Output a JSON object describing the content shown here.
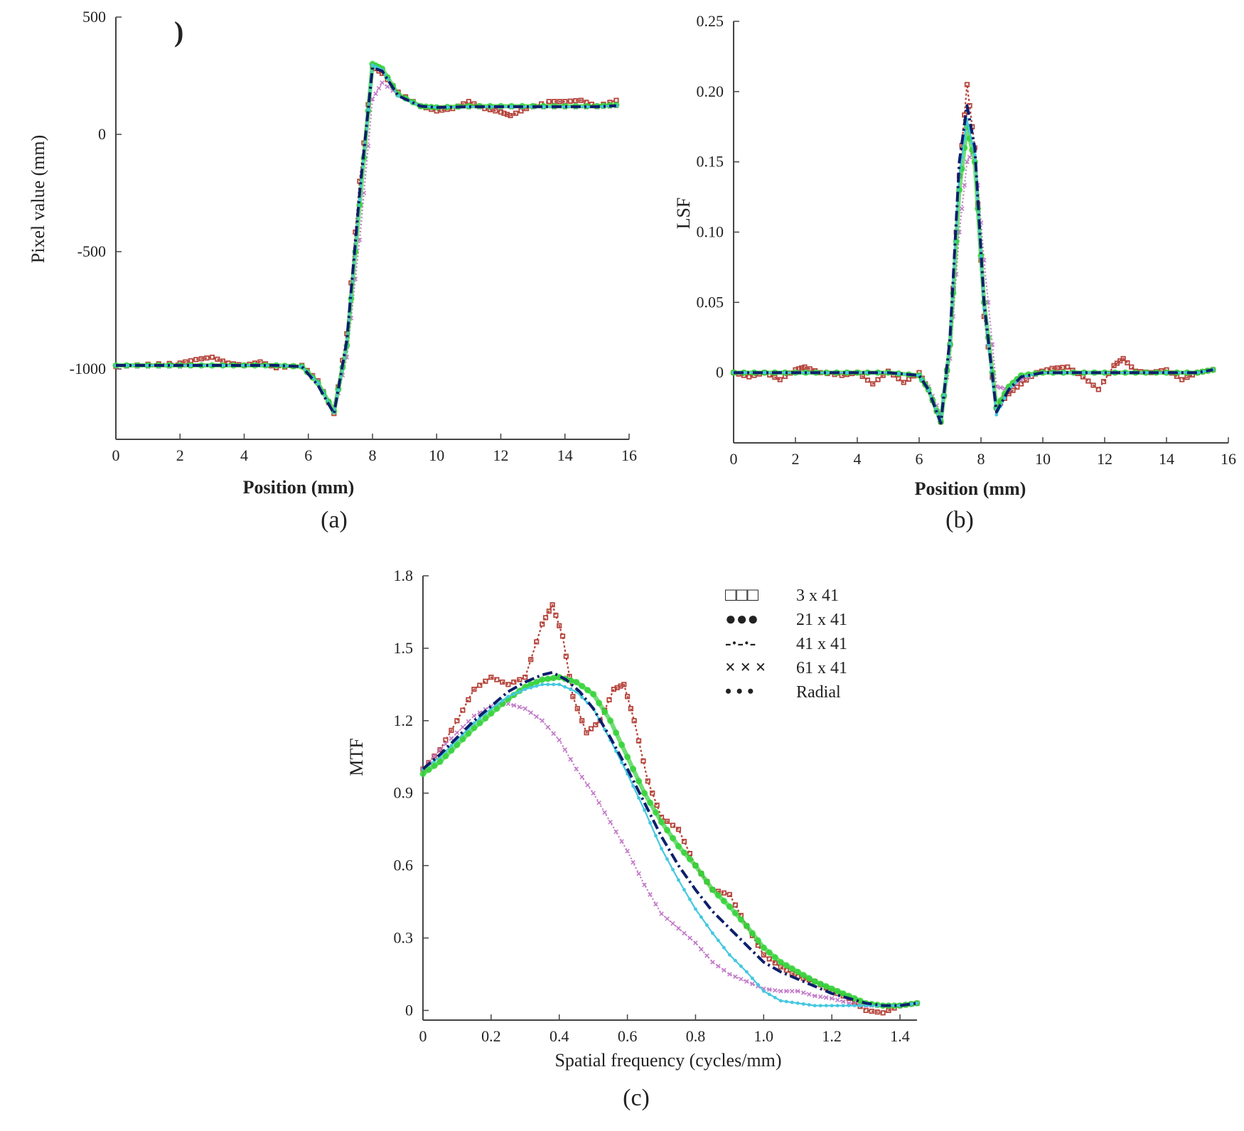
{
  "chart_data": [
    {
      "id": "a",
      "type": "line",
      "panel_label": "(a)",
      "corner_mark": ")",
      "xlabel": "Position (mm)",
      "ylabel": "Pixel value (mm)",
      "xlim": [
        0,
        16
      ],
      "ylim": [
        -1300,
        500
      ],
      "x_ticks": [
        0,
        2,
        4,
        6,
        8,
        10,
        12,
        14,
        16
      ],
      "x_tick_labels": [
        "0",
        "2",
        "4",
        "6",
        "8",
        "10",
        "12",
        "14",
        "16"
      ],
      "y_ticks": [
        500,
        0,
        -500,
        -1000
      ],
      "y_tick_labels": [
        "500",
        "0",
        "-500",
        "-1000"
      ],
      "series": [
        {
          "key": "s3",
          "x": [
            0,
            1,
            2,
            2.5,
            3,
            3.5,
            4,
            4.5,
            5,
            5.8,
            6.3,
            6.8,
            7.2,
            7.6,
            8.0,
            8.3,
            8.8,
            9.5,
            10,
            10.5,
            11,
            11.5,
            12,
            12.3,
            12.8,
            13.5,
            14,
            14.5,
            15,
            15.6
          ],
          "y": [
            -990,
            -980,
            -975,
            -960,
            -950,
            -975,
            -985,
            -970,
            -995,
            -985,
            -1050,
            -1190,
            -850,
            -200,
            290,
            260,
            180,
            120,
            100,
            110,
            140,
            110,
            95,
            80,
            110,
            140,
            140,
            145,
            120,
            145
          ]
        },
        {
          "key": "s21",
          "x": [
            0,
            1,
            2,
            3,
            4,
            5,
            5.8,
            6.3,
            6.8,
            7.2,
            7.6,
            8.0,
            8.3,
            8.8,
            9.5,
            10,
            11,
            12,
            13,
            14,
            15,
            15.6
          ],
          "y": [
            -985,
            -985,
            -985,
            -985,
            -985,
            -985,
            -990,
            -1060,
            -1180,
            -900,
            -300,
            300,
            280,
            170,
            120,
            115,
            120,
            120,
            120,
            120,
            120,
            125
          ]
        },
        {
          "key": "s41",
          "x": [
            0,
            1,
            2,
            3,
            4,
            5,
            5.8,
            6.3,
            6.8,
            7.2,
            7.6,
            8.0,
            8.3,
            8.8,
            9.5,
            10,
            11,
            12,
            13,
            14,
            15,
            15.6
          ],
          "y": [
            -985,
            -985,
            -985,
            -985,
            -985,
            -985,
            -990,
            -1070,
            -1190,
            -880,
            -250,
            285,
            270,
            165,
            120,
            115,
            118,
            118,
            118,
            118,
            118,
            122
          ]
        },
        {
          "key": "s61",
          "x": [
            0,
            1,
            2,
            3,
            4,
            5,
            5.8,
            6.3,
            6.8,
            7.2,
            7.6,
            8.0,
            8.3,
            8.8,
            9.5,
            10,
            11,
            12,
            13,
            14,
            15,
            15.6
          ],
          "y": [
            -990,
            -990,
            -990,
            -985,
            -985,
            -985,
            -990,
            -1050,
            -1180,
            -950,
            -450,
            150,
            220,
            170,
            120,
            115,
            115,
            115,
            115,
            115,
            115,
            120
          ]
        },
        {
          "key": "radial",
          "x": [
            0,
            1,
            2,
            3,
            4,
            5,
            5.8,
            6.3,
            6.8,
            7.2,
            7.6,
            8.0,
            8.3,
            8.8,
            9.5,
            10,
            11,
            12,
            13,
            14,
            15,
            15.6
          ],
          "y": [
            -985,
            -985,
            -985,
            -985,
            -985,
            -985,
            -990,
            -1060,
            -1185,
            -900,
            -280,
            295,
            275,
            165,
            120,
            115,
            118,
            118,
            118,
            118,
            118,
            122
          ]
        }
      ]
    },
    {
      "id": "b",
      "type": "line",
      "panel_label": "(b)",
      "xlabel": "Position (mm)",
      "ylabel": "LSF",
      "xlim": [
        0,
        16
      ],
      "ylim": [
        -0.05,
        0.25
      ],
      "x_ticks": [
        0,
        2,
        4,
        6,
        8,
        10,
        12,
        14,
        16
      ],
      "x_tick_labels": [
        "0",
        "2",
        "4",
        "6",
        "8",
        "10",
        "12",
        "14",
        "16"
      ],
      "y_ticks": [
        0.25,
        0.2,
        0.15,
        0.1,
        0.05,
        0
      ],
      "y_tick_labels": [
        "0.25",
        "0.20",
        "0.15",
        "0.10",
        "0.05",
        "0"
      ],
      "series": [
        {
          "key": "s3",
          "x": [
            0,
            0.5,
            1,
            1.5,
            2,
            2.3,
            2.8,
            3.5,
            4,
            4.5,
            5,
            5.5,
            6,
            6.3,
            6.7,
            7.0,
            7.3,
            7.55,
            7.8,
            8.1,
            8.5,
            8.9,
            9.3,
            9.8,
            10.3,
            10.8,
            11.3,
            11.8,
            12.3,
            12.6,
            13,
            13.5,
            14,
            14.5,
            15,
            15.5
          ],
          "y": [
            0,
            -0.003,
            0,
            -0.005,
            0.002,
            0.004,
            0,
            -0.002,
            0,
            -0.008,
            0.001,
            -0.007,
            0,
            -0.012,
            -0.035,
            0.02,
            0.14,
            0.205,
            0.16,
            0.04,
            -0.025,
            -0.015,
            -0.008,
            0,
            0.003,
            0.004,
            -0.003,
            -0.012,
            0.005,
            0.01,
            0.001,
            0,
            0.002,
            -0.005,
            0,
            0.002
          ]
        },
        {
          "key": "s21",
          "x": [
            0,
            1,
            2,
            3,
            4,
            5,
            6,
            6.3,
            6.7,
            7.0,
            7.3,
            7.55,
            7.8,
            8.1,
            8.5,
            8.9,
            9.3,
            10,
            11,
            12,
            13,
            14,
            15,
            15.5
          ],
          "y": [
            0,
            0,
            0,
            0,
            0,
            0,
            -0.002,
            -0.012,
            -0.035,
            0.02,
            0.13,
            0.175,
            0.15,
            0.05,
            -0.025,
            -0.01,
            -0.002,
            0,
            0,
            0,
            0,
            0,
            0,
            0.002
          ]
        },
        {
          "key": "s41",
          "x": [
            0,
            1,
            2,
            3,
            4,
            5,
            6,
            6.3,
            6.7,
            7.0,
            7.3,
            7.55,
            7.8,
            8.1,
            8.5,
            8.9,
            9.3,
            10,
            11,
            12,
            13,
            14,
            15,
            15.5
          ],
          "y": [
            0,
            0,
            0,
            0,
            0,
            0,
            -0.002,
            -0.012,
            -0.036,
            0.025,
            0.15,
            0.19,
            0.16,
            0.05,
            -0.028,
            -0.012,
            -0.003,
            0,
            0,
            0,
            0,
            0,
            0,
            0.002
          ]
        },
        {
          "key": "s61",
          "x": [
            0,
            1,
            2,
            3,
            4,
            5,
            6,
            6.3,
            6.7,
            7.0,
            7.3,
            7.55,
            7.8,
            8.1,
            8.5,
            8.9,
            9.3,
            10,
            11,
            12,
            13,
            14,
            15,
            15.5
          ],
          "y": [
            0,
            0,
            0,
            0,
            0,
            0,
            -0.002,
            -0.01,
            -0.03,
            0.01,
            0.1,
            0.15,
            0.16,
            0.08,
            -0.01,
            -0.012,
            -0.005,
            0,
            0,
            0,
            0,
            0,
            0,
            0.002
          ]
        },
        {
          "key": "radial",
          "x": [
            0,
            1,
            2,
            3,
            4,
            5,
            6,
            6.3,
            6.7,
            7.0,
            7.3,
            7.55,
            7.8,
            8.1,
            8.5,
            8.9,
            9.3,
            10,
            11,
            12,
            13,
            14,
            15,
            15.5
          ],
          "y": [
            0,
            0,
            0,
            0,
            0,
            0,
            -0.002,
            -0.012,
            -0.035,
            0.02,
            0.14,
            0.18,
            0.155,
            0.045,
            -0.03,
            -0.012,
            -0.003,
            0,
            0,
            0,
            0,
            0,
            0,
            0.002
          ]
        }
      ]
    },
    {
      "id": "c",
      "type": "line",
      "panel_label": "(c)",
      "xlabel": "Spatial frequency (cycles/mm)",
      "ylabel": "MTF",
      "xlim": [
        0,
        1.45
      ],
      "ylim": [
        -0.04,
        1.8
      ],
      "x_ticks": [
        0,
        0.2,
        0.4,
        0.6,
        0.8,
        1.0,
        1.2,
        1.4
      ],
      "x_tick_labels": [
        "0",
        "0.2",
        "0.4",
        "0.6",
        "0.8",
        "1.0",
        "1.2",
        "1.4"
      ],
      "y_ticks": [
        1.8,
        1.5,
        1.2,
        0.9,
        0.6,
        0.3,
        0
      ],
      "y_tick_labels": [
        "1.8",
        "1.5",
        "1.2",
        "0.9",
        "0.6",
        "0.3",
        "0"
      ],
      "legend": {
        "position": "top-right"
      },
      "series": [
        {
          "key": "s3",
          "name": "3   x 41",
          "x": [
            0,
            0.05,
            0.1,
            0.15,
            0.2,
            0.25,
            0.3,
            0.35,
            0.38,
            0.41,
            0.44,
            0.48,
            0.52,
            0.56,
            0.59,
            0.62,
            0.66,
            0.7,
            0.75,
            0.8,
            0.85,
            0.9,
            0.95,
            1.0,
            1.05,
            1.1,
            1.15,
            1.2,
            1.25,
            1.3,
            1.35,
            1.4,
            1.45
          ],
          "y": [
            1.0,
            1.08,
            1.2,
            1.33,
            1.38,
            1.35,
            1.38,
            1.6,
            1.68,
            1.55,
            1.3,
            1.15,
            1.2,
            1.33,
            1.35,
            1.2,
            0.95,
            0.8,
            0.75,
            0.6,
            0.5,
            0.48,
            0.35,
            0.23,
            0.18,
            0.14,
            0.12,
            0.08,
            0.05,
            0.0,
            -0.01,
            0.02,
            0.03
          ]
        },
        {
          "key": "s21",
          "name": "21 x 41",
          "x": [
            0,
            0.05,
            0.1,
            0.15,
            0.2,
            0.25,
            0.3,
            0.35,
            0.4,
            0.45,
            0.5,
            0.55,
            0.6,
            0.65,
            0.7,
            0.75,
            0.8,
            0.85,
            0.9,
            0.95,
            1.0,
            1.05,
            1.1,
            1.15,
            1.2,
            1.25,
            1.3,
            1.35,
            1.4,
            1.45
          ],
          "y": [
            0.98,
            1.03,
            1.1,
            1.17,
            1.23,
            1.29,
            1.34,
            1.37,
            1.38,
            1.36,
            1.31,
            1.2,
            1.05,
            0.9,
            0.78,
            0.68,
            0.6,
            0.5,
            0.43,
            0.35,
            0.26,
            0.2,
            0.16,
            0.12,
            0.09,
            0.06,
            0.03,
            0.02,
            0.02,
            0.03
          ]
        },
        {
          "key": "s41",
          "name": "41 x 41",
          "x": [
            0,
            0.05,
            0.1,
            0.15,
            0.2,
            0.25,
            0.3,
            0.35,
            0.38,
            0.42,
            0.46,
            0.5,
            0.55,
            0.6,
            0.65,
            0.7,
            0.75,
            0.8,
            0.85,
            0.9,
            0.95,
            1.0,
            1.05,
            1.1,
            1.15,
            1.2,
            1.25,
            1.3,
            1.35,
            1.4,
            1.45
          ],
          "y": [
            1.0,
            1.06,
            1.13,
            1.2,
            1.26,
            1.32,
            1.36,
            1.39,
            1.4,
            1.37,
            1.32,
            1.25,
            1.13,
            1.0,
            0.86,
            0.72,
            0.6,
            0.5,
            0.41,
            0.34,
            0.27,
            0.2,
            0.16,
            0.13,
            0.1,
            0.07,
            0.05,
            0.03,
            0.02,
            0.02,
            0.03
          ]
        },
        {
          "key": "s61",
          "name": "61 x 41",
          "x": [
            0,
            0.05,
            0.1,
            0.15,
            0.2,
            0.25,
            0.3,
            0.35,
            0.4,
            0.45,
            0.5,
            0.55,
            0.6,
            0.65,
            0.7,
            0.75,
            0.8,
            0.85,
            0.9,
            0.95,
            1.0,
            1.05,
            1.1,
            1.15,
            1.2,
            1.25,
            1.3,
            1.35,
            1.4,
            1.45
          ],
          "y": [
            1.0,
            1.08,
            1.15,
            1.22,
            1.26,
            1.27,
            1.25,
            1.2,
            1.12,
            1.0,
            0.9,
            0.78,
            0.66,
            0.52,
            0.4,
            0.34,
            0.28,
            0.2,
            0.15,
            0.12,
            0.09,
            0.08,
            0.08,
            0.06,
            0.05,
            0.03,
            0.02,
            0.02,
            0.02,
            0.03
          ]
        },
        {
          "key": "radial",
          "name": "Radial",
          "x": [
            0,
            0.05,
            0.1,
            0.15,
            0.2,
            0.25,
            0.3,
            0.35,
            0.4,
            0.45,
            0.5,
            0.55,
            0.6,
            0.65,
            0.7,
            0.75,
            0.8,
            0.85,
            0.9,
            0.95,
            1.0,
            1.05,
            1.1,
            1.15,
            1.2,
            1.25,
            1.3,
            1.35,
            1.4,
            1.45
          ],
          "y": [
            1.0,
            1.05,
            1.12,
            1.19,
            1.25,
            1.3,
            1.33,
            1.35,
            1.35,
            1.32,
            1.25,
            1.12,
            0.98,
            0.83,
            0.67,
            0.54,
            0.42,
            0.32,
            0.23,
            0.16,
            0.08,
            0.04,
            0.03,
            0.02,
            0.02,
            0.02,
            0.02,
            0.02,
            0.02,
            0.03
          ]
        }
      ]
    }
  ],
  "series_styles": {
    "s3": {
      "color": "#b5433a",
      "marker": "square-open",
      "legend_glyph": "□□□"
    },
    "s21": {
      "color": "#35d23a",
      "marker": "circle-filled",
      "legend_glyph": "●●●"
    },
    "s41": {
      "color": "#0d1f6b",
      "marker": "dash-dot",
      "legend_glyph": "-·-·-"
    },
    "s61": {
      "color": "#c27ac8",
      "marker": "x",
      "legend_glyph": "× × ×"
    },
    "radial": {
      "color": "#45c8e0",
      "marker": "dot",
      "legend_glyph": "• • •"
    }
  }
}
